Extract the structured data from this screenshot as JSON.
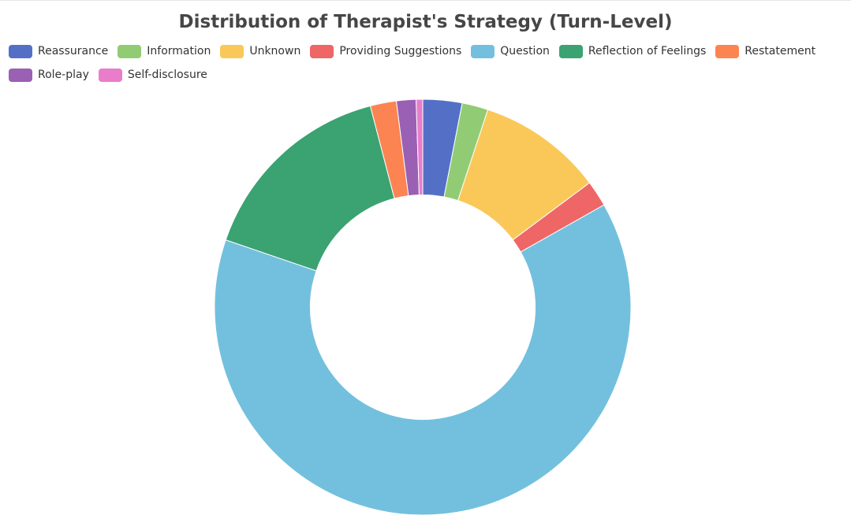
{
  "chart_data": {
    "type": "pie",
    "title": "Distribution of Therapist's Strategy (Turn-Level)",
    "legend_position": "top-left",
    "hole_ratio": 0.54,
    "categories": [
      "Reassurance",
      "Information",
      "Unknown",
      "Providing Suggestions",
      "Question",
      "Reflection of Feelings",
      "Restatement",
      "Role-play",
      "Self-disclosure"
    ],
    "values": [
      3.0,
      2.0,
      9.6,
      2.0,
      62.6,
      15.5,
      2.0,
      1.5,
      0.5
    ],
    "colors": [
      "#5470c6",
      "#91cc75",
      "#fac858",
      "#ee6666",
      "#73c0de",
      "#3ba272",
      "#fc8452",
      "#9a60b4",
      "#ea7ccc"
    ]
  }
}
